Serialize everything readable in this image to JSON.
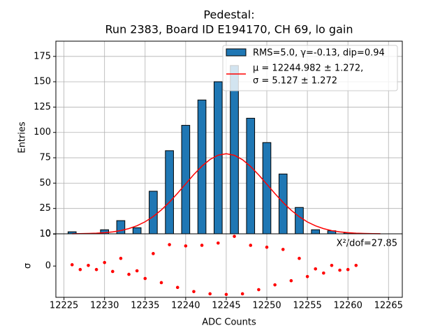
{
  "chart_data": [
    {
      "type": "histogram",
      "title": "Pedestal:",
      "subtitle": "Run 2383, Board ID E194170, CH 69, lo gain",
      "ylabel": "Entries",
      "xlim": [
        12224,
        12266.7
      ],
      "xticks": [
        12225,
        12230,
        12235,
        12240,
        12245,
        12250,
        12255,
        12260,
        12265
      ],
      "ylim": [
        0,
        190
      ],
      "yticks": [
        0,
        25,
        50,
        75,
        100,
        125,
        150,
        175
      ],
      "grid": "both",
      "legend": "upper right",
      "rwidth": 0.5,
      "bins": [
        12225,
        12227,
        12229,
        12231,
        12233,
        12235,
        12237,
        12239,
        12241,
        12243,
        12245,
        12247,
        12249,
        12251,
        12253,
        12255,
        12257,
        12259,
        12261
      ],
      "series": [
        {
          "name": "RMS=5.0, γ=-0.13, dip=0.94",
          "color": "#1f77b4",
          "values": [
            2,
            0,
            4,
            13,
            6,
            42,
            82,
            107,
            132,
            150,
            166,
            114,
            90,
            59,
            26,
            4,
            3,
            1
          ]
        },
        {
          "name": [
            "μ = 12244.982 ± 1.272,",
            "σ = 5.127 ± 1.272"
          ],
          "color": "#ff0000",
          "kind": "line",
          "x": [
            12226,
            12227,
            12228,
            12229,
            12230,
            12231,
            12232,
            12233,
            12234,
            12235,
            12236,
            12237,
            12238,
            12239,
            12240,
            12241,
            12242,
            12243,
            12244,
            12245,
            12246,
            12247,
            12248,
            12249,
            12250,
            12251,
            12252,
            12253,
            12254,
            12255,
            12256,
            12257,
            12258,
            12259,
            12260,
            12261,
            12262,
            12263,
            12264
          ],
          "values": [
            0.08,
            0.17,
            0.33,
            0.61,
            1.1,
            1.92,
            3.2,
            5.15,
            7.97,
            11.87,
            17.03,
            23.51,
            31.25,
            40.0,
            49.27,
            58.43,
            66.71,
            73.31,
            77.56,
            79.0,
            77.46,
            73.11,
            66.43,
            58.11,
            48.93,
            39.67,
            30.96,
            23.26,
            16.82,
            11.71,
            7.85,
            5.07,
            3.14,
            1.88,
            1.08,
            0.6,
            0.32,
            0.16,
            0.08
          ]
        }
      ]
    },
    {
      "type": "scatter",
      "xlabel": "ADC Counts",
      "ylabel": "σ",
      "annotation": "X²/dof=27.85",
      "xlim": [
        12224,
        12266.7
      ],
      "xticks": [
        12225,
        12230,
        12235,
        12240,
        12245,
        12250,
        12255,
        12260,
        12265
      ],
      "ylim": [
        -9.8,
        10.1
      ],
      "yticks": [
        0,
        10
      ],
      "grid": "x",
      "color": "#ff0000",
      "x": [
        12226,
        12227,
        12228,
        12229,
        12230,
        12231,
        12232,
        12233,
        12234,
        12235,
        12236,
        12237,
        12238,
        12239,
        12240,
        12241,
        12242,
        12243,
        12244,
        12245,
        12246,
        12247,
        12248,
        12249,
        12250,
        12251,
        12252,
        12253,
        12254,
        12255,
        12256,
        12257,
        12258,
        12259,
        12260,
        12261
      ],
      "values": [
        0.4,
        -1.1,
        0.2,
        -1.1,
        1.1,
        -1.7,
        2.4,
        -2.6,
        -1.5,
        -3.9,
        3.9,
        -5.2,
        6.7,
        -6.7,
        6.3,
        -8.0,
        6.5,
        -8.7,
        7.2,
        -8.9,
        9.3,
        -8.7,
        6.5,
        -7.4,
        5.9,
        -5.9,
        5.2,
        -4.6,
        2.4,
        -3.3,
        -0.9,
        -2.2,
        0.2,
        -1.3,
        -1.1,
        0.2
      ]
    }
  ]
}
